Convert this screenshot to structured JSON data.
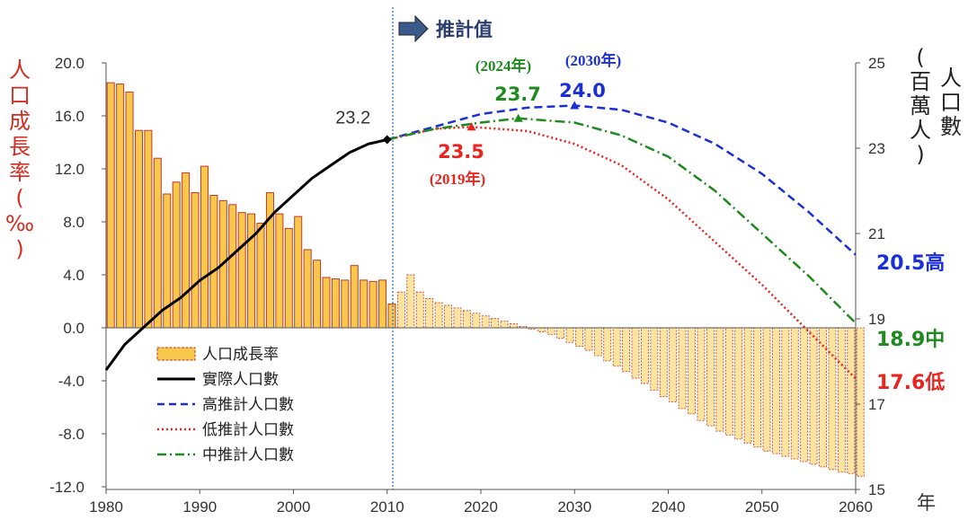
{
  "chart_data": {
    "type": "bar+line",
    "x_axis": {
      "range": [
        1980,
        2060
      ],
      "ticks": [
        "1980",
        "1990",
        "2000",
        "2010",
        "2020",
        "2030",
        "2040",
        "2050",
        "2060"
      ],
      "unit": "年"
    },
    "y_left": {
      "label": "人口成長率(‰)",
      "range": [
        -12,
        20
      ],
      "ticks": [
        "20.0",
        "16.0",
        "12.0",
        "8.0",
        "4.0",
        "0.0",
        "-4.0",
        "-8.0",
        "-12.0"
      ]
    },
    "y_right": {
      "label_lines": [
        "人口數",
        "(百萬人)"
      ],
      "range": [
        15,
        25
      ],
      "ticks": [
        "25",
        "23",
        "21",
        "19",
        "17",
        "15"
      ]
    },
    "projection_label": "推計值",
    "legend": [
      {
        "key": "growth",
        "label": "人口成長率"
      },
      {
        "key": "actual",
        "label": "實際人口數"
      },
      {
        "key": "high",
        "label": "高推計人口數"
      },
      {
        "key": "low",
        "label": "低推計人口數"
      },
      {
        "key": "medium",
        "label": "中推計人口數"
      }
    ],
    "growth_rate": {
      "years": [
        1980,
        1981,
        1982,
        1983,
        1984,
        1985,
        1986,
        1987,
        1988,
        1989,
        1990,
        1991,
        1992,
        1993,
        1994,
        1995,
        1996,
        1997,
        1998,
        1999,
        2000,
        2001,
        2002,
        2003,
        2004,
        2005,
        2006,
        2007,
        2008,
        2009,
        2010,
        2011,
        2012,
        2013,
        2014,
        2015,
        2016,
        2017,
        2018,
        2019,
        2020,
        2021,
        2022,
        2023,
        2024,
        2025,
        2026,
        2027,
        2028,
        2029,
        2030,
        2031,
        2032,
        2033,
        2034,
        2035,
        2036,
        2037,
        2038,
        2039,
        2040,
        2041,
        2042,
        2043,
        2044,
        2045,
        2046,
        2047,
        2048,
        2049,
        2050,
        2051,
        2052,
        2053,
        2054,
        2055,
        2056,
        2057,
        2058,
        2059,
        2060
      ],
      "values": [
        18.5,
        18.4,
        17.8,
        14.9,
        14.9,
        12.8,
        10.1,
        11.0,
        11.7,
        10.2,
        12.2,
        10.0,
        9.6,
        9.3,
        8.7,
        8.6,
        7.9,
        10.2,
        8.6,
        7.5,
        8.4,
        5.9,
        5.1,
        3.8,
        3.7,
        3.6,
        4.7,
        3.6,
        3.5,
        3.6,
        1.8,
        2.7,
        4.0,
        2.7,
        2.2,
        1.9,
        1.7,
        1.5,
        1.3,
        1.1,
        0.9,
        0.7,
        0.5,
        0.3,
        0.1,
        -0.1,
        -0.3,
        -0.5,
        -0.8,
        -1.1,
        -1.4,
        -1.7,
        -2.1,
        -2.5,
        -2.9,
        -3.3,
        -3.8,
        -4.2,
        -4.7,
        -5.2,
        -5.6,
        -6.1,
        -6.5,
        -7.0,
        -7.4,
        -7.8,
        -8.1,
        -8.4,
        -8.7,
        -9.0,
        -9.3,
        -9.5,
        -9.7,
        -9.9,
        -10.1,
        -10.3,
        -10.5,
        -10.7,
        -10.9,
        -11.0,
        -11.2
      ],
      "projected_from": 2011
    },
    "actual_population": {
      "x": [
        1980,
        1982,
        1984,
        1986,
        1988,
        1990,
        1992,
        1994,
        1996,
        1998,
        2000,
        2002,
        2004,
        2006,
        2008,
        2010
      ],
      "y": [
        17.8,
        18.4,
        18.8,
        19.2,
        19.5,
        19.9,
        20.2,
        20.6,
        21.0,
        21.5,
        21.9,
        22.3,
        22.6,
        22.9,
        23.1,
        23.2
      ]
    },
    "high_projection": {
      "x": [
        2010,
        2015,
        2020,
        2025,
        2030,
        2035,
        2040,
        2045,
        2050,
        2055,
        2060
      ],
      "y": [
        23.2,
        23.5,
        23.8,
        23.95,
        24.0,
        23.9,
        23.6,
        23.1,
        22.4,
        21.5,
        20.5
      ]
    },
    "medium_projection": {
      "x": [
        2010,
        2015,
        2020,
        2024,
        2030,
        2035,
        2040,
        2045,
        2050,
        2055,
        2060
      ],
      "y": [
        23.2,
        23.45,
        23.6,
        23.7,
        23.6,
        23.3,
        22.8,
        22.0,
        21.0,
        20.0,
        18.9
      ]
    },
    "low_projection": {
      "x": [
        2010,
        2015,
        2019,
        2025,
        2030,
        2035,
        2040,
        2045,
        2050,
        2055,
        2060
      ],
      "y": [
        23.2,
        23.45,
        23.5,
        23.4,
        23.1,
        22.6,
        21.8,
        20.8,
        19.8,
        18.7,
        17.6
      ]
    },
    "annotations": {
      "actual_2010": "23.2",
      "low_peak": {
        "value": "23.5",
        "year": "(2019年)",
        "x": 2019,
        "y": 23.5
      },
      "medium_peak": {
        "value": "23.7",
        "year": "(2024年)",
        "x": 2024,
        "y": 23.7
      },
      "high_peak": {
        "value": "24.0",
        "year": "(2030年)",
        "x": 2030,
        "y": 24.0
      },
      "high_end": "20.5高",
      "medium_end": "18.9中",
      "low_end": "17.6低"
    },
    "colors": {
      "bar_fill": "#f7c84b",
      "bar_stroke": "#c0392b",
      "actual": "#000000",
      "high": "#1a2fd6",
      "low": "#e8251f",
      "medium": "#1f8a1f",
      "projection_divider": "#1f6fd1",
      "left_axis_label": "#d62d20",
      "arrow_fill": "#3b5a8a"
    }
  }
}
